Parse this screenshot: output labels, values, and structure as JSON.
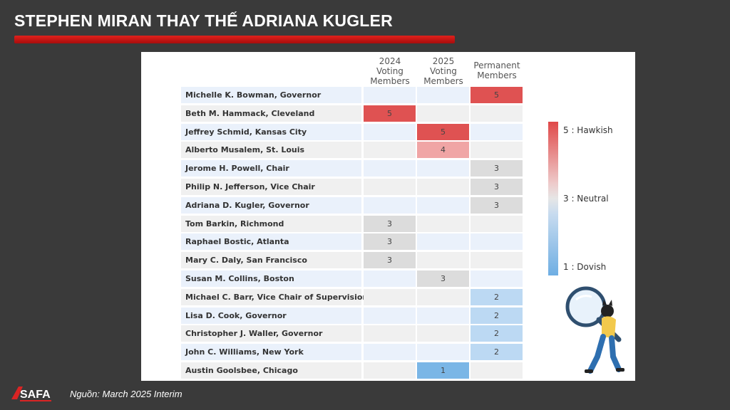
{
  "page": {
    "title": "STEPHEN MIRAN THAY THẾ ADRIANA KUGLER",
    "source": "Nguồn: March 2025 Interim",
    "logo_text": "SAFA"
  },
  "chart_data": {
    "type": "table",
    "columns": [
      {
        "line1": "2024",
        "line2": "Voting",
        "line3": "Members"
      },
      {
        "line1": "2025",
        "line2": "Voting",
        "line3": "Members"
      },
      {
        "line1": "Permanent",
        "line2": "Members",
        "line3": ""
      }
    ],
    "rows": [
      {
        "name": "Michelle K. Bowman, Governor",
        "col": 2,
        "score": 5
      },
      {
        "name": "Beth M. Hammack, Cleveland",
        "col": 0,
        "score": 5
      },
      {
        "name": "Jeffrey Schmid, Kansas City",
        "col": 1,
        "score": 5
      },
      {
        "name": "Alberto Musalem, St. Louis",
        "col": 1,
        "score": 4
      },
      {
        "name": "Jerome H. Powell, Chair",
        "col": 2,
        "score": 3
      },
      {
        "name": "Philip N. Jefferson, Vice Chair",
        "col": 2,
        "score": 3
      },
      {
        "name": "Adriana D. Kugler, Governor",
        "col": 2,
        "score": 3
      },
      {
        "name": "Tom Barkin, Richmond",
        "col": 0,
        "score": 3
      },
      {
        "name": "Raphael Bostic, Atlanta",
        "col": 0,
        "score": 3
      },
      {
        "name": "Mary C. Daly, San Francisco",
        "col": 0,
        "score": 3
      },
      {
        "name": "Susan M. Collins, Boston",
        "col": 1,
        "score": 3
      },
      {
        "name": "Michael C. Barr, Vice Chair of Supervision",
        "col": 2,
        "score": 2
      },
      {
        "name": "Lisa D. Cook, Governor",
        "col": 2,
        "score": 2
      },
      {
        "name": "Christopher J. Waller, Governor",
        "col": 2,
        "score": 2
      },
      {
        "name": "John C. Williams, New York",
        "col": 2,
        "score": 2
      },
      {
        "name": "Austin Goolsbee, Chicago",
        "col": 1,
        "score": 1
      }
    ],
    "legend": {
      "high": "5 : Hawkish",
      "mid": "3 : Neutral",
      "low": "1 : Dovish"
    },
    "colors": {
      "5": "#df5252",
      "4": "#f0a5a5",
      "3": "#dcdcdc",
      "2": "#bcd9f3",
      "1": "#7ab6e6",
      "row_alt_a": "#eaf1fb",
      "row_alt_b": "#f2f2f2"
    }
  }
}
